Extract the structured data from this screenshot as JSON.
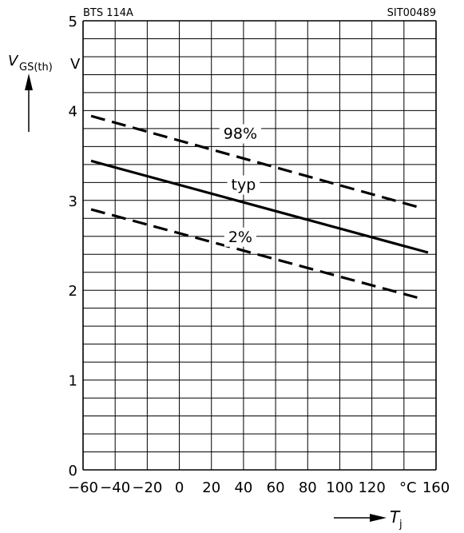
{
  "chart_data": {
    "type": "line",
    "title_left": "BTS 114A",
    "title_right": "SIT00489",
    "ylabel_main": "V",
    "ylabel_sub": "GS(th)",
    "yunit": "V",
    "xlabel_main": "T",
    "xlabel_sub": "j",
    "xunit": "°C",
    "xlim": [
      -60,
      160
    ],
    "ylim": [
      0,
      5
    ],
    "x_ticks": [
      "-60",
      "-40",
      "-20",
      "0",
      "20",
      "40",
      "60",
      "80",
      "100",
      "120",
      "160"
    ],
    "y_ticks": [
      "0",
      "1",
      "2",
      "3",
      "4",
      "5"
    ],
    "grid": true,
    "series": [
      {
        "name": "98%",
        "x": [
          -55,
          150
        ],
        "y": [
          3.94,
          2.92
        ],
        "style": "dashed",
        "label_x": 38,
        "label_y": 3.75
      },
      {
        "name": "typ",
        "x": [
          -55,
          155
        ],
        "y": [
          3.44,
          2.42
        ],
        "style": "solid",
        "label_x": 40,
        "label_y": 3.18
      },
      {
        "name": "2%",
        "x": [
          -55,
          150
        ],
        "y": [
          2.9,
          1.91
        ],
        "style": "dashed",
        "label_x": 38,
        "label_y": 2.6
      }
    ]
  }
}
